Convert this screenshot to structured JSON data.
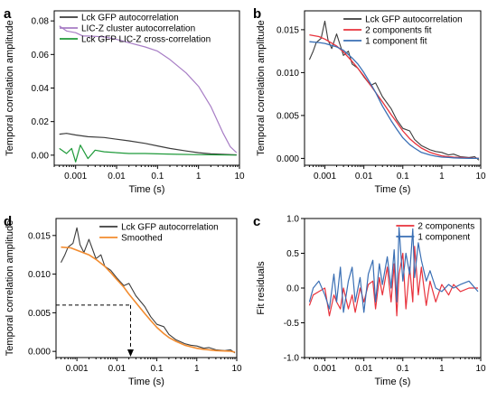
{
  "chart_data": [
    {
      "panel": "a",
      "type": "line",
      "xlabel": "Time (s)",
      "ylabel": "Temporal correlation amplitude",
      "xscale": "log",
      "xlim": [
        0.0003,
        10
      ],
      "ylim": [
        -0.006,
        0.086
      ],
      "xticks": [
        {
          "v": 0.001,
          "label": "0.001"
        },
        {
          "v": 0.01,
          "label": "0.01"
        },
        {
          "v": 0.1,
          "label": "0.1"
        },
        {
          "v": 1,
          "label": "1"
        },
        {
          "v": 10,
          "label": "10"
        }
      ],
      "yticks": [
        {
          "v": 0,
          "label": "0.00"
        },
        {
          "v": 0.02,
          "label": "0.02"
        },
        {
          "v": 0.04,
          "label": "0.04"
        },
        {
          "v": 0.06,
          "label": "0.06"
        },
        {
          "v": 0.08,
          "label": "0.08"
        }
      ],
      "legend": "top-left",
      "series": [
        {
          "name": "Lck GFP autocorrelation",
          "color": "#3c3c3c",
          "width": 1.2,
          "x": [
            0.0004,
            0.0006,
            0.001,
            0.002,
            0.005,
            0.01,
            0.02,
            0.05,
            0.1,
            0.2,
            0.5,
            1,
            2,
            5,
            8.5
          ],
          "y": [
            0.0125,
            0.013,
            0.012,
            0.011,
            0.0105,
            0.0095,
            0.0085,
            0.007,
            0.0055,
            0.004,
            0.0025,
            0.0015,
            0.0008,
            0.0004,
            0.0002
          ]
        },
        {
          "name": "LIC-Z cluster autocorrelation",
          "color": "#a77dc5",
          "width": 1.2,
          "x": [
            0.0004,
            0.0006,
            0.001,
            0.0015,
            0.002,
            0.005,
            0.01,
            0.02,
            0.05,
            0.1,
            0.2,
            0.5,
            1,
            2,
            4,
            6,
            8.5
          ],
          "y": [
            0.077,
            0.074,
            0.073,
            0.071,
            0.071,
            0.0705,
            0.069,
            0.067,
            0.0645,
            0.062,
            0.057,
            0.049,
            0.041,
            0.029,
            0.013,
            0.005,
            0.0015
          ]
        },
        {
          "name": "Lck GFP LIC-Z cross-correlation",
          "color": "#1f9a3a",
          "width": 1.2,
          "x": [
            0.0004,
            0.0006,
            0.0008,
            0.001,
            0.0013,
            0.002,
            0.003,
            0.005,
            0.01,
            0.02,
            0.05,
            0.1,
            0.3,
            1,
            3,
            8.5
          ],
          "y": [
            0.004,
            0.001,
            0.004,
            -0.004,
            0.006,
            -0.002,
            0.003,
            0.002,
            0.0015,
            0.001,
            0.001,
            0.0008,
            0.0005,
            0.0003,
            0.0002,
            0.0
          ]
        }
      ]
    },
    {
      "panel": "b",
      "type": "line",
      "xlabel": "Time (s)",
      "ylabel": "Temporal correlation amplitude",
      "xscale": "log",
      "xlim": [
        0.0003,
        10
      ],
      "ylim": [
        -0.0008,
        0.0172
      ],
      "xticks": [
        {
          "v": 0.001,
          "label": "0.001"
        },
        {
          "v": 0.01,
          "label": "0.01"
        },
        {
          "v": 0.1,
          "label": "0.1"
        },
        {
          "v": 1,
          "label": "1"
        },
        {
          "v": 10,
          "label": "10"
        }
      ],
      "yticks": [
        {
          "v": 0,
          "label": "0.000"
        },
        {
          "v": 0.005,
          "label": "0.005"
        },
        {
          "v": 0.01,
          "label": "0.010"
        },
        {
          "v": 0.015,
          "label": "0.015"
        }
      ],
      "legend": "top-right",
      "series": [
        {
          "name": "Lck GFP autocorrelation",
          "color": "#3c3c3c",
          "width": 1.1,
          "x": [
            0.0004,
            0.0005,
            0.0006,
            0.0008,
            0.001,
            0.0012,
            0.0015,
            0.002,
            0.003,
            0.004,
            0.005,
            0.007,
            0.01,
            0.015,
            0.02,
            0.03,
            0.05,
            0.07,
            0.1,
            0.15,
            0.2,
            0.3,
            0.5,
            0.7,
            1,
            1.5,
            2,
            3,
            5,
            7,
            9
          ],
          "y": [
            0.0115,
            0.0125,
            0.0135,
            0.014,
            0.016,
            0.0138,
            0.0128,
            0.0145,
            0.012,
            0.0125,
            0.011,
            0.0105,
            0.0095,
            0.0085,
            0.0088,
            0.0072,
            0.0058,
            0.0045,
            0.0035,
            0.0032,
            0.0022,
            0.0015,
            0.001,
            0.0008,
            0.0007,
            0.0004,
            0.0005,
            0.0002,
            0.0001,
            0.0002,
            -0.0002
          ]
        },
        {
          "name": "2 components fit",
          "color": "#e8323c",
          "width": 1.3,
          "x": [
            0.0004,
            0.0007,
            0.001,
            0.002,
            0.003,
            0.005,
            0.007,
            0.01,
            0.015,
            0.02,
            0.03,
            0.05,
            0.07,
            0.1,
            0.15,
            0.2,
            0.3,
            0.5,
            0.7,
            1,
            1.5,
            2,
            3,
            5,
            7,
            9
          ],
          "y": [
            0.0144,
            0.0142,
            0.0139,
            0.0131,
            0.0124,
            0.0113,
            0.0105,
            0.0096,
            0.0085,
            0.0077,
            0.0066,
            0.0051,
            0.0042,
            0.0032,
            0.0023,
            0.0018,
            0.0012,
            0.0007,
            0.0005,
            0.0003,
            0.0002,
            0.00015,
            0.0001,
            5e-05,
            2e-05,
            1e-05
          ]
        },
        {
          "name": "1 component fit",
          "color": "#3a6fb4",
          "width": 1.3,
          "x": [
            0.0004,
            0.0007,
            0.001,
            0.002,
            0.003,
            0.005,
            0.007,
            0.01,
            0.015,
            0.02,
            0.03,
            0.05,
            0.07,
            0.1,
            0.15,
            0.2,
            0.3,
            0.5,
            0.7,
            1,
            1.5,
            2,
            3,
            5,
            7,
            9
          ],
          "y": [
            0.0136,
            0.0135,
            0.0134,
            0.013,
            0.0126,
            0.0117,
            0.011,
            0.01,
            0.0087,
            0.0077,
            0.0061,
            0.0044,
            0.0034,
            0.0024,
            0.0016,
            0.0012,
            0.0007,
            0.0004,
            0.00025,
            0.00015,
            0.0001,
            6e-05,
            3e-05,
            1e-05,
            0.0,
            0.0
          ]
        }
      ]
    },
    {
      "panel": "d",
      "type": "line",
      "xlabel": "Time (s)",
      "ylabel": "Temporal correlation amplitude",
      "xscale": "log",
      "xlim": [
        0.0003,
        10
      ],
      "ylim": [
        -0.0008,
        0.0172
      ],
      "xticks": [
        {
          "v": 0.001,
          "label": "0.001"
        },
        {
          "v": 0.01,
          "label": "0.01"
        },
        {
          "v": 0.1,
          "label": "0.1"
        },
        {
          "v": 1,
          "label": "1"
        },
        {
          "v": 10,
          "label": "10"
        }
      ],
      "yticks": [
        {
          "v": 0,
          "label": "0.000"
        },
        {
          "v": 0.005,
          "label": "0.005"
        },
        {
          "v": 0.01,
          "label": "0.010"
        },
        {
          "v": 0.015,
          "label": "0.015"
        }
      ],
      "legend": "top-right",
      "annotations": [
        {
          "type": "dashed-drop-line",
          "x": 0.022,
          "y": 0.006,
          "arrow": "down"
        }
      ],
      "series": [
        {
          "name": "Lck GFP autocorrelation",
          "color": "#3c3c3c",
          "width": 1.1,
          "x": [
            0.0004,
            0.0005,
            0.0006,
            0.0008,
            0.001,
            0.0012,
            0.0015,
            0.002,
            0.003,
            0.004,
            0.005,
            0.007,
            0.01,
            0.015,
            0.02,
            0.03,
            0.05,
            0.07,
            0.1,
            0.15,
            0.2,
            0.3,
            0.5,
            0.7,
            1,
            1.5,
            2,
            3,
            5,
            7,
            9
          ],
          "y": [
            0.0115,
            0.0125,
            0.0135,
            0.014,
            0.016,
            0.0138,
            0.0128,
            0.0145,
            0.012,
            0.0125,
            0.011,
            0.0105,
            0.0095,
            0.0085,
            0.0088,
            0.0072,
            0.0058,
            0.0045,
            0.0035,
            0.0032,
            0.0022,
            0.0015,
            0.001,
            0.0008,
            0.0007,
            0.0004,
            0.0005,
            0.0002,
            0.0001,
            0.0002,
            -0.0002
          ]
        },
        {
          "name": "Smoothed",
          "color": "#f28b2e",
          "width": 1.6,
          "x": [
            0.0004,
            0.0007,
            0.001,
            0.002,
            0.003,
            0.005,
            0.007,
            0.01,
            0.015,
            0.02,
            0.03,
            0.05,
            0.07,
            0.1,
            0.15,
            0.2,
            0.3,
            0.5,
            0.7,
            1,
            1.5,
            2,
            3,
            5,
            7,
            9
          ],
          "y": [
            0.0135,
            0.0134,
            0.0131,
            0.0125,
            0.0119,
            0.011,
            0.0102,
            0.0093,
            0.0083,
            0.0074,
            0.0063,
            0.0049,
            0.004,
            0.0031,
            0.0023,
            0.0018,
            0.0013,
            0.0008,
            0.0006,
            0.0004,
            0.00025,
            0.0002,
            0.0001,
            5e-05,
            2e-05,
            -0.0001
          ]
        }
      ]
    },
    {
      "panel": "c",
      "type": "line",
      "xlabel": "Time (s)",
      "ylabel": "Fit residuals",
      "xscale": "log",
      "xlim": [
        0.0003,
        10
      ],
      "ylim": [
        -1.0,
        1.0
      ],
      "xticks": [
        {
          "v": 0.001,
          "label": "0.001"
        },
        {
          "v": 0.01,
          "label": "0.01"
        },
        {
          "v": 0.1,
          "label": "0.1"
        },
        {
          "v": 1,
          "label": "1"
        },
        {
          "v": 10,
          "label": "10"
        }
      ],
      "yticks": [
        {
          "v": -1,
          "label": "-1.0"
        },
        {
          "v": -0.5,
          "label": "-0.5"
        },
        {
          "v": 0,
          "label": "0.0"
        },
        {
          "v": 0.5,
          "label": "0.5"
        },
        {
          "v": 1,
          "label": "1.0"
        }
      ],
      "legend": "top-right",
      "series": [
        {
          "name": "2 components",
          "color": "#e8323c",
          "width": 1.2,
          "x": [
            0.0004,
            0.0005,
            0.0007,
            0.001,
            0.0013,
            0.0017,
            0.002,
            0.0025,
            0.003,
            0.004,
            0.005,
            0.006,
            0.008,
            0.01,
            0.013,
            0.017,
            0.02,
            0.025,
            0.03,
            0.04,
            0.05,
            0.06,
            0.07,
            0.08,
            0.1,
            0.12,
            0.15,
            0.18,
            0.2,
            0.25,
            0.3,
            0.4,
            0.5,
            0.7,
            1,
            1.5,
            2,
            3,
            5,
            8.5
          ],
          "y": [
            -0.25,
            -0.1,
            -0.05,
            0.0,
            -0.4,
            -0.1,
            -0.2,
            -0.3,
            0.0,
            -0.3,
            -0.1,
            -0.35,
            0.0,
            -0.2,
            0.05,
            0.1,
            -0.3,
            0.15,
            -0.1,
            0.3,
            -0.2,
            0.35,
            -0.4,
            0.2,
            0.5,
            -0.3,
            0.3,
            -0.2,
            0.6,
            -0.1,
            0.3,
            -0.25,
            0.1,
            -0.2,
            0.05,
            -0.1,
            0.05,
            -0.05,
            0.0,
            0.0
          ]
        },
        {
          "name": "1 component",
          "color": "#3a6fb4",
          "width": 1.2,
          "x": [
            0.0004,
            0.0005,
            0.0007,
            0.001,
            0.0013,
            0.0017,
            0.002,
            0.0025,
            0.003,
            0.004,
            0.005,
            0.006,
            0.008,
            0.01,
            0.013,
            0.017,
            0.02,
            0.025,
            0.03,
            0.04,
            0.05,
            0.06,
            0.07,
            0.08,
            0.1,
            0.12,
            0.15,
            0.18,
            0.2,
            0.25,
            0.3,
            0.4,
            0.5,
            0.7,
            1,
            1.5,
            2,
            3,
            5,
            8.5
          ],
          "y": [
            -0.2,
            0.0,
            0.1,
            -0.1,
            -0.3,
            0.2,
            -0.2,
            0.3,
            -0.35,
            0.1,
            0.3,
            -0.2,
            0.15,
            -0.35,
            0.2,
            0.4,
            -0.2,
            0.35,
            0.05,
            0.45,
            0.0,
            0.55,
            -0.2,
            0.87,
            0.1,
            0.5,
            0.2,
            0.85,
            0.15,
            0.65,
            0.4,
            0.1,
            0.25,
            0.0,
            -0.05,
            0.05,
            0.0,
            0.05,
            0.1,
            -0.05
          ]
        }
      ]
    }
  ]
}
